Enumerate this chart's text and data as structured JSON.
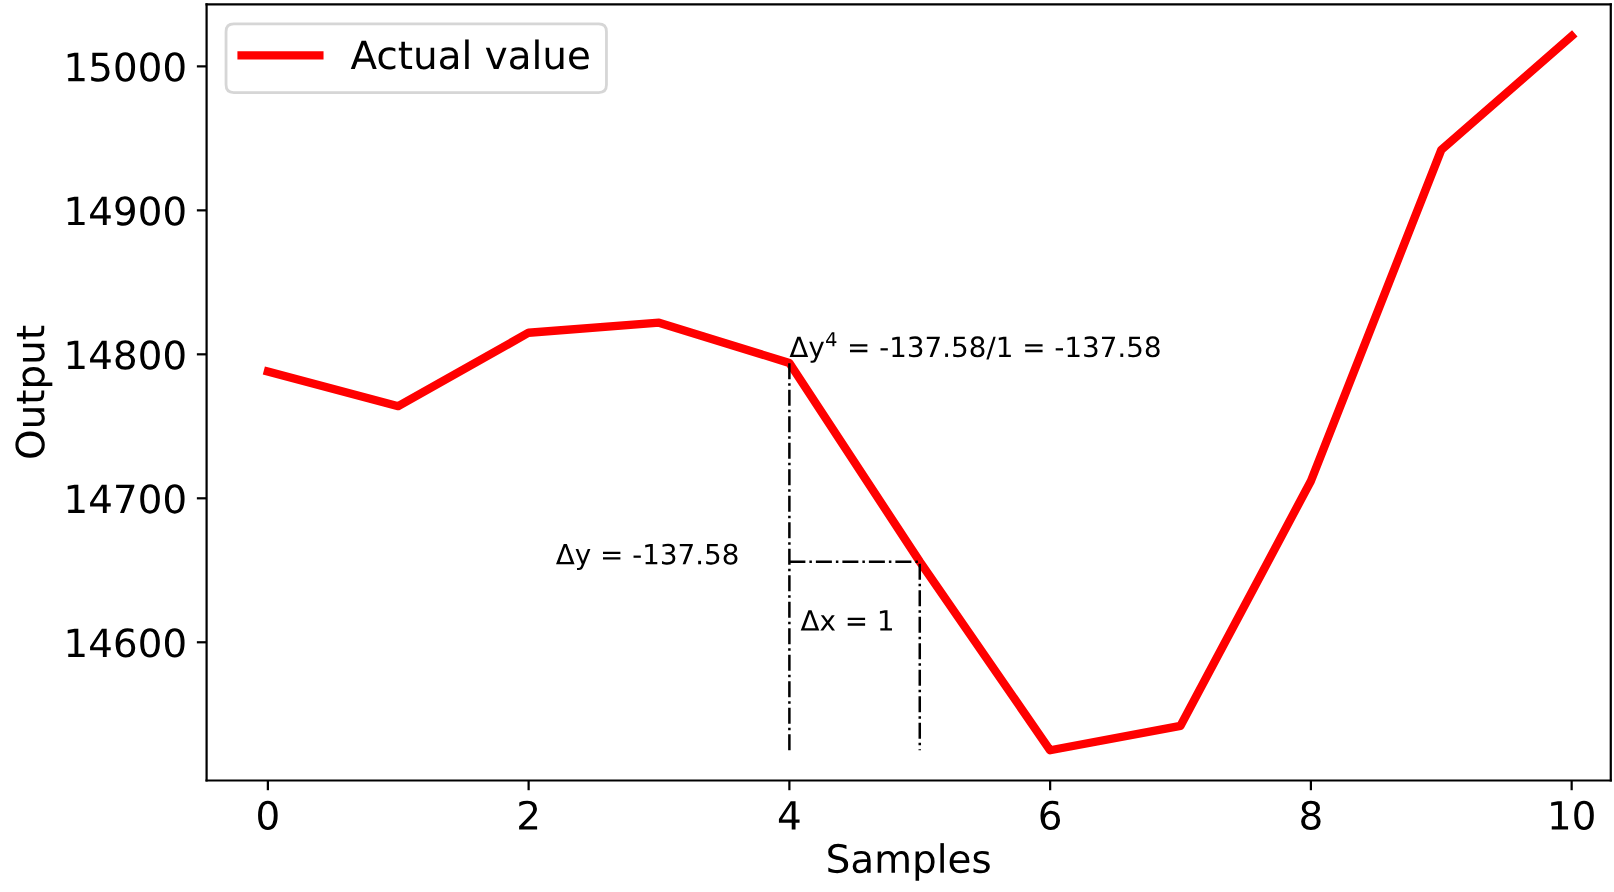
{
  "chart_data": {
    "type": "line",
    "xlabel": "Samples",
    "ylabel": "Output",
    "xlim": [
      -0.47,
      10.3
    ],
    "ylim": [
      14504,
      15043
    ],
    "xticks": [
      0,
      2,
      4,
      6,
      8,
      10
    ],
    "yticks": [
      14600,
      14700,
      14800,
      14900,
      15000
    ],
    "grid": false,
    "legend": "top left",
    "marker": "none",
    "series": [
      {
        "name": "Actual value",
        "color": "#ff0000",
        "x": [
          0,
          1,
          2,
          3,
          4,
          5,
          6,
          7,
          8,
          9,
          10
        ],
        "values": [
          14788,
          14764,
          14815,
          14822,
          14794,
          14656,
          14525,
          14542,
          14712,
          14942,
          15021
        ],
        "line_style": "solid"
      },
      {
        "color": "#000000",
        "x": [
          4,
          4
        ],
        "values": [
          14525,
          14794
        ],
        "line_style": "dashdot"
      },
      {
        "color": "#000000",
        "x": [
          4,
          5,
          5
        ],
        "values": [
          14656,
          14656,
          14525
        ],
        "line_style": "dashdot"
      }
    ],
    "annotations": [
      {
        "text": "Δy$^{4}$ = -137.58/1 = -137.58",
        "x": 4,
        "y": 14794
      },
      "Δy = -137.58",
      "Δx = 1"
    ]
  }
}
